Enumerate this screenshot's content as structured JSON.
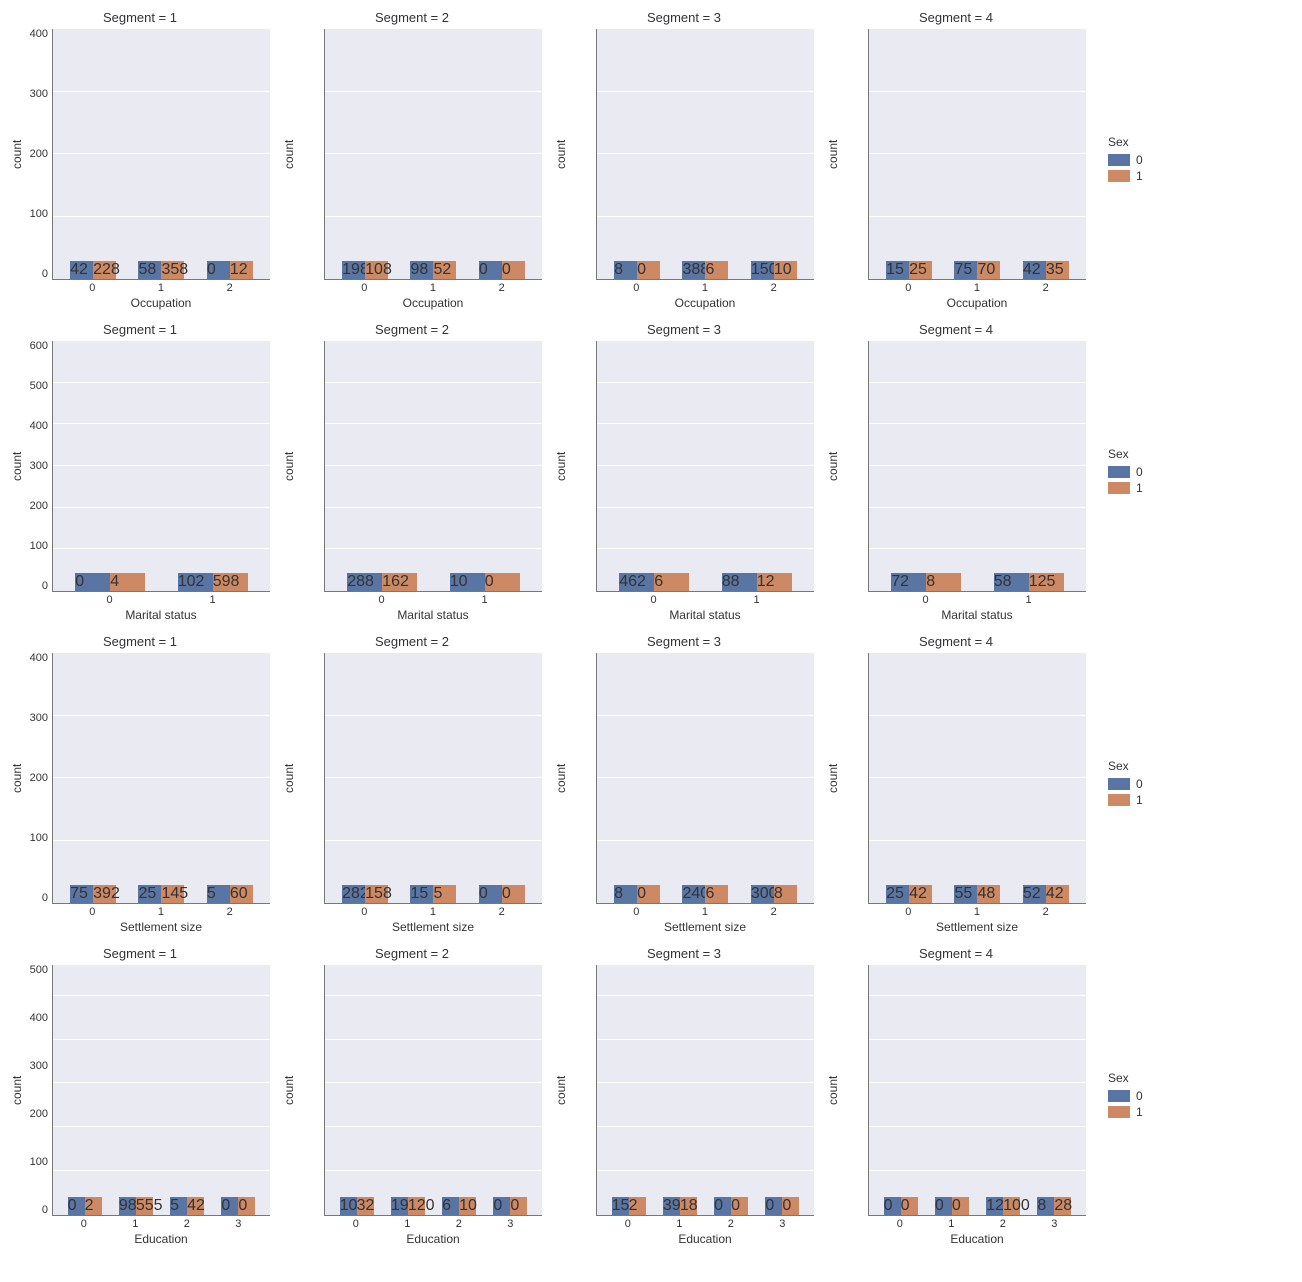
{
  "global": {
    "background_color": "#eaeaf2",
    "grid_color": "#ffffff",
    "colors": {
      "sex0": "#5975a4",
      "sex1": "#cc8963"
    },
    "ylabel": "count",
    "title_prefix": "Segment = ",
    "legend_title": "Sex",
    "legend_items": [
      {
        "label": "0",
        "color": "#5975a4"
      },
      {
        "label": "1",
        "color": "#cc8963"
      }
    ],
    "title_fontsize": 13,
    "label_fontsize": 12,
    "tick_fontsize": 11,
    "bar_group_width": 0.8
  },
  "rows": [
    {
      "xlabel": "Occupation",
      "categories": [
        "0",
        "1",
        "2"
      ],
      "ylim": [
        0,
        400
      ],
      "yticks": [
        0,
        100,
        200,
        300,
        400
      ],
      "panels": [
        {
          "segment": "1",
          "sex0": [
            42,
            58,
            0
          ],
          "sex1": [
            228,
            358,
            12
          ]
        },
        {
          "segment": "2",
          "sex0": [
            198,
            98,
            0
          ],
          "sex1": [
            108,
            52,
            0
          ]
        },
        {
          "segment": "3",
          "sex0": [
            8,
            388,
            150
          ],
          "sex1": [
            0,
            6,
            10
          ]
        },
        {
          "segment": "4",
          "sex0": [
            15,
            75,
            42
          ],
          "sex1": [
            25,
            70,
            35
          ]
        }
      ]
    },
    {
      "xlabel": "Marital status",
      "categories": [
        "0",
        "1"
      ],
      "ylim": [
        0,
        600
      ],
      "yticks": [
        0,
        100,
        200,
        300,
        400,
        500,
        600
      ],
      "panels": [
        {
          "segment": "1",
          "sex0": [
            0,
            102
          ],
          "sex1": [
            4,
            598
          ]
        },
        {
          "segment": "2",
          "sex0": [
            288,
            10
          ],
          "sex1": [
            162,
            0
          ]
        },
        {
          "segment": "3",
          "sex0": [
            462,
            88
          ],
          "sex1": [
            6,
            12
          ]
        },
        {
          "segment": "4",
          "sex0": [
            72,
            58
          ],
          "sex1": [
            8,
            125
          ]
        }
      ]
    },
    {
      "xlabel": "Settlement size",
      "categories": [
        "0",
        "1",
        "2"
      ],
      "ylim": [
        0,
        400
      ],
      "yticks": [
        0,
        100,
        200,
        300,
        400
      ],
      "panels": [
        {
          "segment": "1",
          "sex0": [
            75,
            25,
            5
          ],
          "sex1": [
            392,
            145,
            60
          ]
        },
        {
          "segment": "2",
          "sex0": [
            282,
            15,
            0
          ],
          "sex1": [
            158,
            5,
            0
          ]
        },
        {
          "segment": "3",
          "sex0": [
            8,
            240,
            300
          ],
          "sex1": [
            0,
            6,
            8
          ]
        },
        {
          "segment": "4",
          "sex0": [
            25,
            55,
            52
          ],
          "sex1": [
            42,
            48,
            42
          ]
        }
      ]
    },
    {
      "xlabel": "Education",
      "categories": [
        "0",
        "1",
        "2",
        "3"
      ],
      "ylim": [
        0,
        570
      ],
      "yticks": [
        0,
        100,
        200,
        300,
        400,
        500
      ],
      "panels": [
        {
          "segment": "1",
          "sex0": [
            0,
            98,
            5,
            0
          ],
          "sex1": [
            2,
            555,
            42,
            0
          ]
        },
        {
          "segment": "2",
          "sex0": [
            102,
            190,
            6,
            0
          ],
          "sex1": [
            32,
            120,
            10,
            0
          ]
        },
        {
          "segment": "3",
          "sex0": [
            150,
            398,
            0,
            0
          ],
          "sex1": [
            2,
            18,
            0,
            0
          ]
        },
        {
          "segment": "4",
          "sex0": [
            0,
            0,
            125,
            8
          ],
          "sex1": [
            0,
            0,
            100,
            28
          ]
        }
      ]
    }
  ]
}
